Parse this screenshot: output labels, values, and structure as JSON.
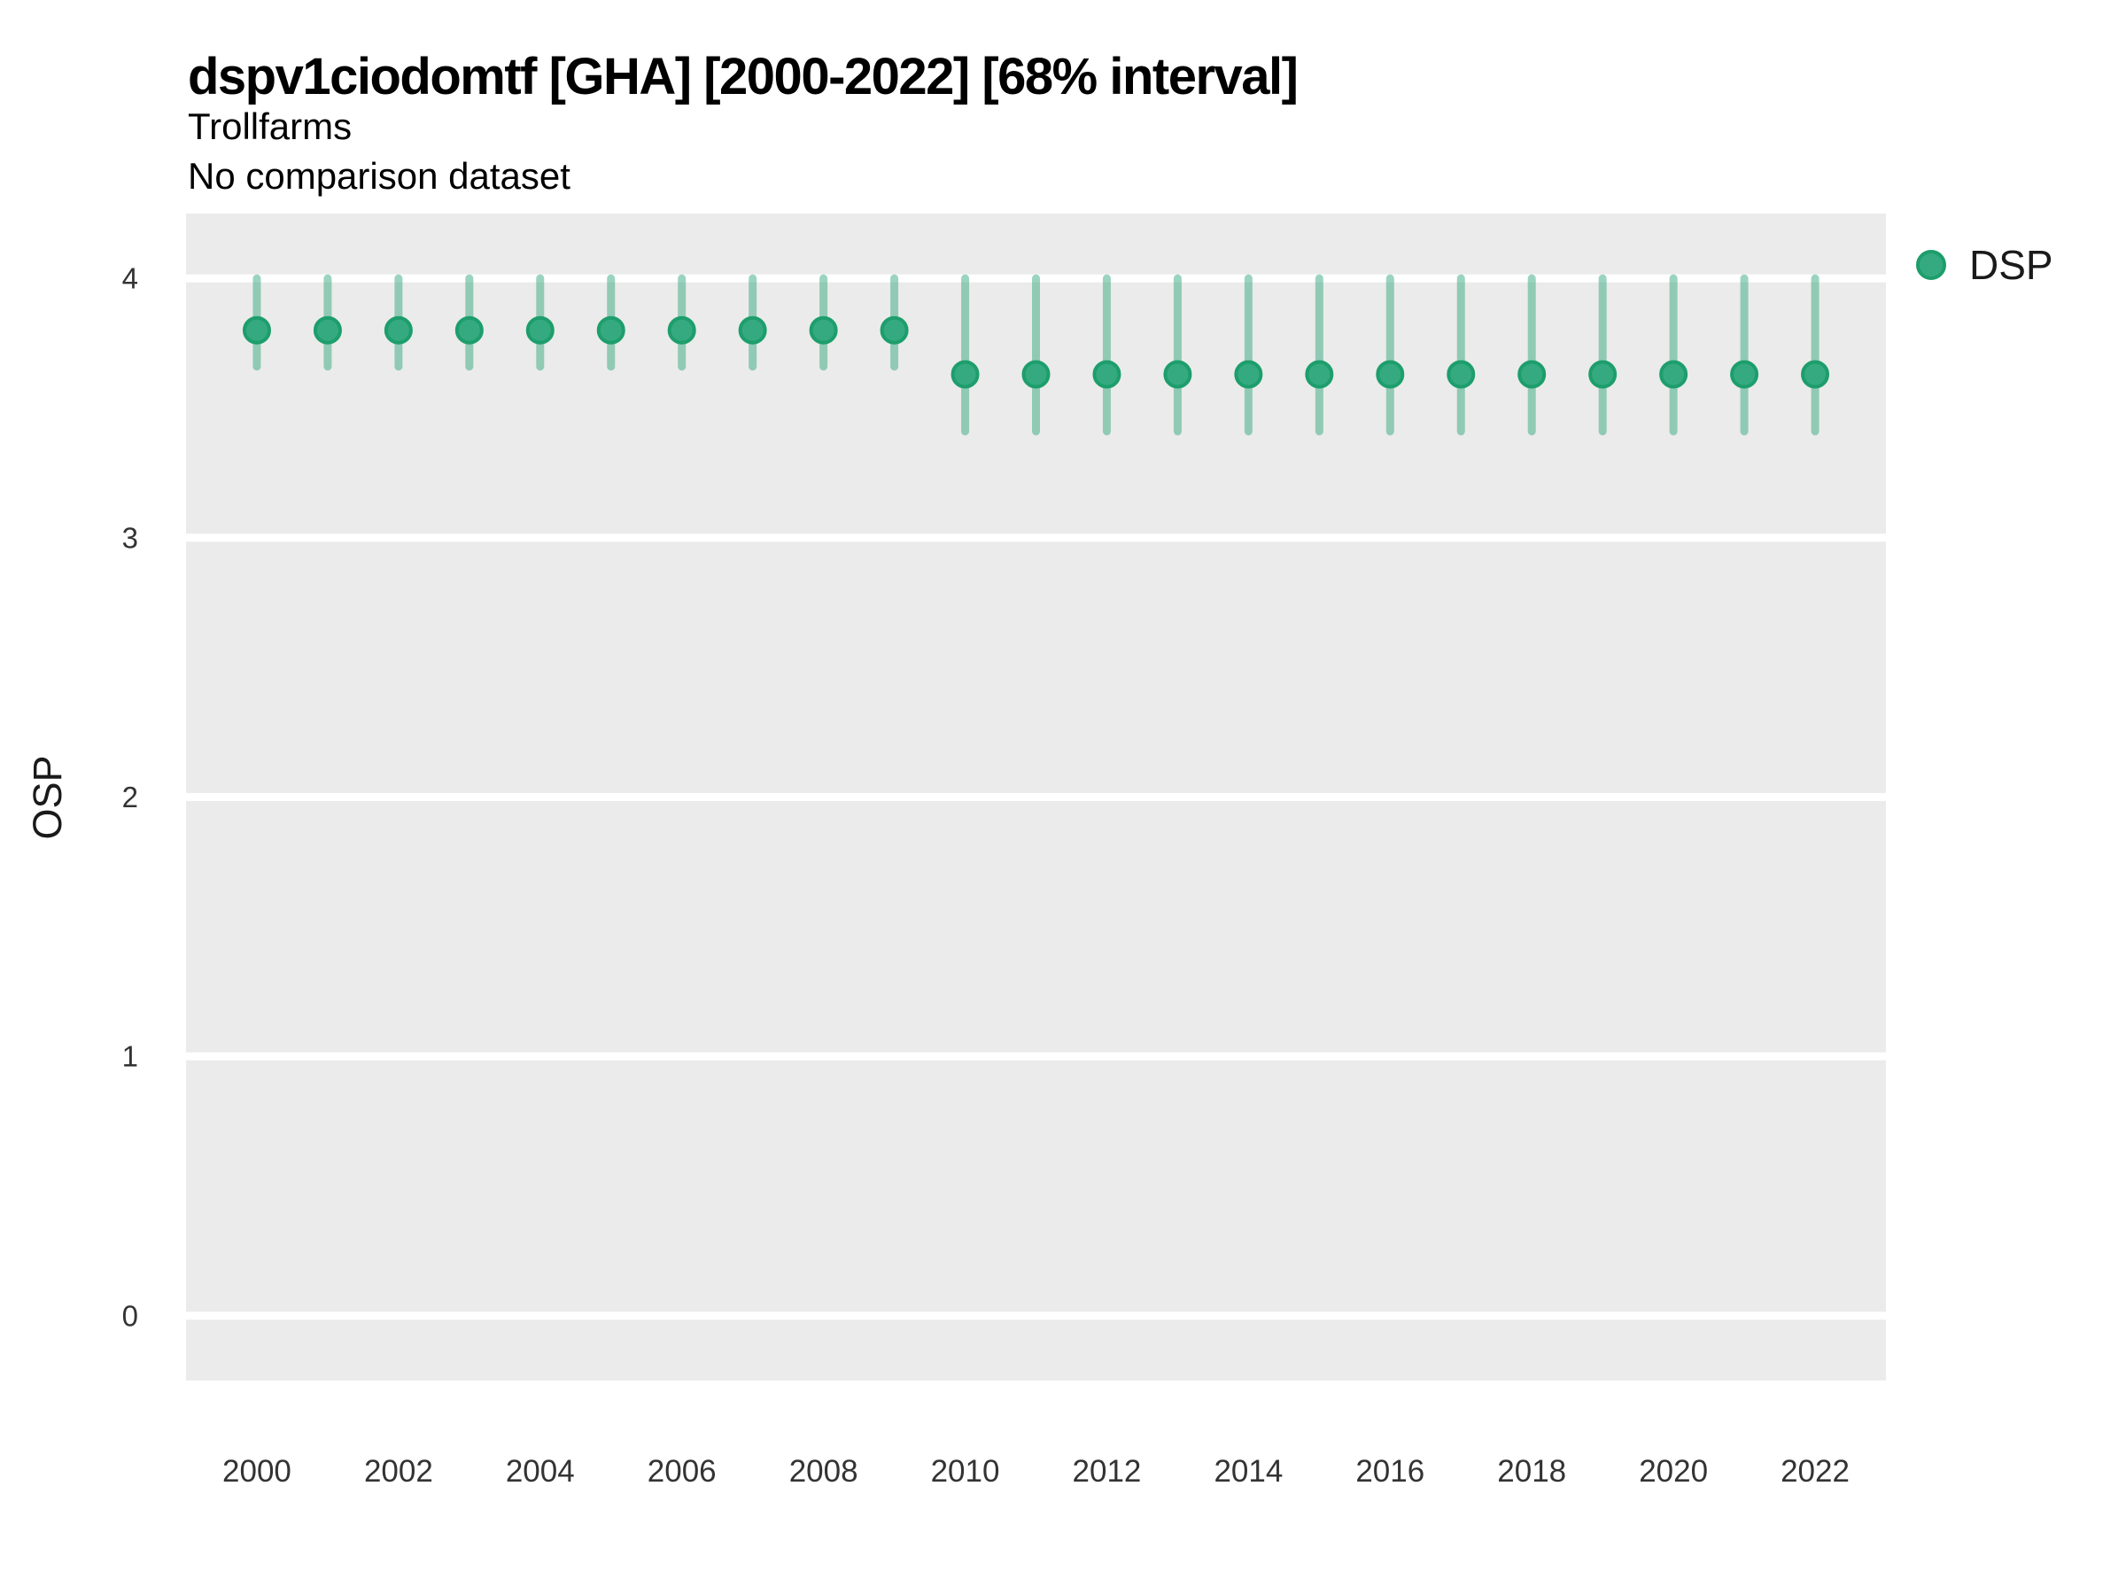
{
  "header": {
    "title": "dspv1ciodomtf [GHA] [2000-2022] [68% interval]",
    "subtitle": "Trollfarms",
    "comparison_note": "No comparison dataset"
  },
  "legend": {
    "items": [
      {
        "label": "DSP"
      }
    ]
  },
  "colors": {
    "page_bg": "#ffffff",
    "panel_bg": "#ebebeb",
    "grid": "#ffffff",
    "point_fill": "#35aa80",
    "point_stroke": "#1d9e6c",
    "interval_bar": "#35aa80",
    "tick_text": "#333333",
    "text": "#1a1a1a"
  },
  "chart_data": {
    "type": "pointrange",
    "title": "dspv1ciodomtf [GHA] [2000-2022] [68% interval]",
    "subtitle": "Trollfarms",
    "note": "No comparison dataset",
    "interval": "68%",
    "xlabel": "",
    "ylabel": "OSP",
    "legend_position": "right",
    "grid": "horizontal major gridlines, white on gray panel",
    "xlim": [
      1999,
      2023
    ],
    "ylim": [
      -0.25,
      4.25
    ],
    "y_ticks": [
      0,
      1,
      2,
      3,
      4
    ],
    "x_tick_labels": [
      2000,
      2002,
      2004,
      2006,
      2008,
      2010,
      2012,
      2014,
      2016,
      2018,
      2020,
      2022
    ],
    "x": [
      2000,
      2001,
      2002,
      2003,
      2004,
      2005,
      2006,
      2007,
      2008,
      2009,
      2010,
      2011,
      2012,
      2013,
      2014,
      2015,
      2016,
      2017,
      2018,
      2019,
      2020,
      2021,
      2022
    ],
    "series": [
      {
        "name": "DSP",
        "est": [
          3.8,
          3.8,
          3.8,
          3.8,
          3.8,
          3.8,
          3.8,
          3.8,
          3.8,
          3.8,
          3.63,
          3.63,
          3.63,
          3.63,
          3.63,
          3.63,
          3.63,
          3.63,
          3.63,
          3.63,
          3.63,
          3.63,
          3.63
        ],
        "lower": [
          3.66,
          3.66,
          3.66,
          3.66,
          3.66,
          3.66,
          3.66,
          3.66,
          3.66,
          3.66,
          3.41,
          3.41,
          3.41,
          3.41,
          3.41,
          3.41,
          3.41,
          3.41,
          3.41,
          3.41,
          3.41,
          3.41,
          3.41
        ],
        "upper": [
          4.0,
          4.0,
          4.0,
          4.0,
          4.0,
          4.0,
          4.0,
          4.0,
          4.0,
          4.0,
          4.0,
          4.0,
          4.0,
          4.0,
          4.0,
          4.0,
          4.0,
          4.0,
          4.0,
          4.0,
          4.0,
          4.0,
          4.0
        ]
      }
    ]
  }
}
